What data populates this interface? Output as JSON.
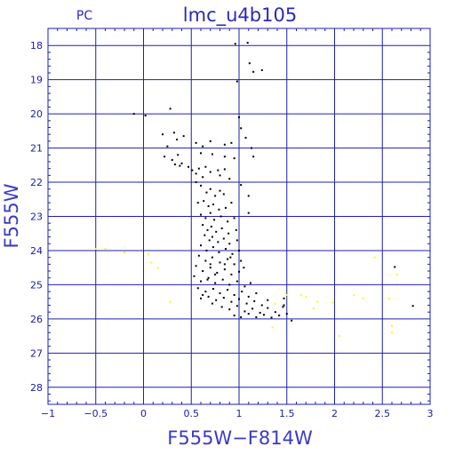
{
  "chart_data": {
    "type": "scatter",
    "title": "lmc_u4b105",
    "panel_label": "PC",
    "xlabel": "F555W−F814W",
    "ylabel": "F555W",
    "xlim": [
      -1,
      3
    ],
    "ylim": [
      28.5,
      17.5
    ],
    "y_inverted": true,
    "grid": true,
    "x_ticks": [
      -1,
      -0.5,
      0,
      0.5,
      1,
      1.5,
      2,
      2.5,
      3
    ],
    "x_tick_labels": [
      "−1",
      "−0.5",
      "0",
      "0.5",
      "1",
      "1.5",
      "2",
      "2.5",
      "3"
    ],
    "y_ticks": [
      18,
      19,
      20,
      21,
      22,
      23,
      24,
      25,
      26,
      27,
      28
    ],
    "y_tick_labels": [
      "18",
      "19",
      "20",
      "21",
      "22",
      "23",
      "24",
      "25",
      "26",
      "27",
      "28"
    ],
    "colors": {
      "axis": "#1f1fb0",
      "grid": "#1f1fb0",
      "main": "#000000",
      "secondary": "#ffff00"
    },
    "series": [
      {
        "color": "#000000",
        "points": [
          [
            0.96,
            17.95
          ],
          [
            1.09,
            17.92
          ],
          [
            0.98,
            19.05
          ],
          [
            1.11,
            18.52
          ],
          [
            1.15,
            18.77
          ],
          [
            1.24,
            18.72
          ],
          [
            -0.1,
            20.0
          ],
          [
            0.02,
            20.05
          ],
          [
            0.28,
            19.85
          ],
          [
            1.0,
            20.1
          ],
          [
            1.02,
            20.42
          ],
          [
            0.2,
            20.6
          ],
          [
            0.32,
            20.55
          ],
          [
            0.25,
            20.95
          ],
          [
            0.35,
            20.75
          ],
          [
            0.42,
            20.65
          ],
          [
            0.55,
            20.85
          ],
          [
            0.7,
            20.8
          ],
          [
            0.62,
            20.95
          ],
          [
            0.85,
            20.9
          ],
          [
            0.92,
            20.85
          ],
          [
            1.07,
            20.7
          ],
          [
            1.13,
            21.0
          ],
          [
            0.22,
            21.25
          ],
          [
            0.3,
            21.35
          ],
          [
            0.36,
            21.2
          ],
          [
            0.6,
            21.15
          ],
          [
            0.72,
            21.18
          ],
          [
            0.85,
            21.25
          ],
          [
            0.95,
            21.3
          ],
          [
            1.15,
            21.25
          ],
          [
            0.4,
            21.45
          ],
          [
            0.47,
            21.55
          ],
          [
            0.51,
            21.65
          ],
          [
            0.58,
            21.6
          ],
          [
            0.65,
            21.55
          ],
          [
            0.7,
            21.7
          ],
          [
            0.78,
            21.65
          ],
          [
            0.85,
            21.62
          ],
          [
            0.33,
            21.48
          ],
          [
            0.38,
            21.52
          ],
          [
            0.55,
            21.75
          ],
          [
            0.62,
            21.85
          ],
          [
            0.8,
            21.8
          ],
          [
            0.9,
            21.9
          ],
          [
            1.02,
            22.08
          ],
          [
            1.1,
            22.4
          ],
          [
            1.1,
            22.9
          ],
          [
            0.55,
            22.0
          ],
          [
            0.6,
            22.1
          ],
          [
            0.66,
            22.3
          ],
          [
            0.7,
            22.2
          ],
          [
            0.75,
            22.4
          ],
          [
            0.8,
            22.25
          ],
          [
            0.84,
            22.35
          ],
          [
            0.57,
            22.6
          ],
          [
            0.63,
            22.55
          ],
          [
            0.68,
            22.7
          ],
          [
            0.73,
            22.65
          ],
          [
            0.79,
            22.8
          ],
          [
            0.86,
            22.75
          ],
          [
            0.92,
            22.6
          ],
          [
            0.6,
            22.95
          ],
          [
            0.65,
            23.05
          ],
          [
            0.7,
            22.9
          ],
          [
            0.74,
            23.1
          ],
          [
            0.81,
            23.0
          ],
          [
            0.88,
            23.15
          ],
          [
            0.95,
            23.05
          ],
          [
            0.62,
            23.25
          ],
          [
            0.67,
            23.4
          ],
          [
            0.71,
            23.3
          ],
          [
            0.76,
            23.45
          ],
          [
            0.82,
            23.35
          ],
          [
            0.89,
            23.5
          ],
          [
            0.97,
            23.4
          ],
          [
            0.64,
            23.55
          ],
          [
            0.69,
            23.7
          ],
          [
            0.72,
            23.6
          ],
          [
            0.78,
            23.75
          ],
          [
            0.84,
            23.65
          ],
          [
            0.9,
            23.8
          ],
          [
            0.98,
            23.7
          ],
          [
            0.6,
            23.85
          ],
          [
            0.66,
            24.0
          ],
          [
            0.73,
            23.9
          ],
          [
            0.79,
            24.05
          ],
          [
            0.86,
            23.95
          ],
          [
            0.93,
            24.1
          ],
          [
            1.0,
            24.0
          ],
          [
            0.58,
            24.15
          ],
          [
            0.65,
            24.3
          ],
          [
            0.72,
            24.2
          ],
          [
            0.8,
            24.35
          ],
          [
            0.88,
            24.25
          ],
          [
            0.95,
            24.4
          ],
          [
            1.02,
            24.3
          ],
          [
            0.55,
            24.45
          ],
          [
            0.62,
            24.6
          ],
          [
            0.7,
            24.5
          ],
          [
            0.77,
            24.65
          ],
          [
            0.85,
            24.55
          ],
          [
            0.92,
            24.7
          ],
          [
            1.0,
            24.62
          ],
          [
            1.05,
            24.5
          ],
          [
            0.53,
            24.75
          ],
          [
            0.6,
            24.9
          ],
          [
            0.68,
            24.8
          ],
          [
            0.75,
            24.95
          ],
          [
            0.83,
            24.85
          ],
          [
            0.9,
            25.0
          ],
          [
            0.98,
            24.9
          ],
          [
            1.06,
            25.05
          ],
          [
            1.12,
            24.95
          ],
          [
            0.57,
            25.1
          ],
          [
            0.65,
            25.2
          ],
          [
            0.73,
            25.12
          ],
          [
            0.8,
            25.25
          ],
          [
            0.88,
            25.15
          ],
          [
            0.95,
            25.3
          ],
          [
            1.03,
            25.2
          ],
          [
            1.1,
            25.35
          ],
          [
            1.18,
            25.25
          ],
          [
            0.6,
            25.4
          ],
          [
            0.68,
            25.35
          ],
          [
            0.76,
            25.45
          ],
          [
            0.84,
            25.38
          ],
          [
            0.92,
            25.5
          ],
          [
            1.0,
            25.42
          ],
          [
            1.08,
            25.55
          ],
          [
            1.16,
            25.48
          ],
          [
            1.24,
            25.6
          ],
          [
            1.3,
            25.45
          ],
          [
            0.82,
            25.65
          ],
          [
            0.9,
            25.72
          ],
          [
            0.98,
            25.62
          ],
          [
            1.06,
            25.78
          ],
          [
            1.14,
            25.7
          ],
          [
            1.22,
            25.82
          ],
          [
            1.3,
            25.68
          ],
          [
            1.38,
            25.8
          ],
          [
            1.46,
            25.65
          ],
          [
            0.95,
            25.9
          ],
          [
            1.02,
            25.95
          ],
          [
            1.1,
            25.85
          ],
          [
            1.18,
            25.95
          ],
          [
            1.26,
            25.88
          ],
          [
            1.34,
            25.96
          ],
          [
            1.42,
            25.9
          ],
          [
            1.5,
            25.85
          ],
          [
            1.55,
            26.05
          ],
          [
            1.47,
            25.4
          ],
          [
            1.47,
            25.6
          ],
          [
            0.7,
            24.4
          ],
          [
            0.75,
            24.7
          ],
          [
            0.85,
            24.4
          ],
          [
            0.91,
            24.2
          ],
          [
            0.67,
            24.85
          ],
          [
            0.62,
            25.3
          ],
          [
            0.72,
            25.55
          ],
          [
            2.63,
            24.48
          ],
          [
            2.82,
            25.62
          ]
        ]
      },
      {
        "color": "#ffff00",
        "points": [
          [
            -0.5,
            23.95
          ],
          [
            -0.4,
            23.95
          ],
          [
            -0.2,
            24.05
          ],
          [
            0.05,
            24.1
          ],
          [
            0.08,
            24.35
          ],
          [
            0.15,
            24.5
          ],
          [
            0.28,
            25.5
          ],
          [
            1.35,
            26.25
          ],
          [
            1.38,
            25.55
          ],
          [
            1.5,
            25.3
          ],
          [
            1.65,
            25.3
          ],
          [
            1.7,
            25.35
          ],
          [
            1.82,
            25.5
          ],
          [
            1.78,
            25.7
          ],
          [
            1.98,
            25.52
          ],
          [
            2.05,
            26.5
          ],
          [
            2.2,
            25.3
          ],
          [
            2.3,
            25.4
          ],
          [
            2.42,
            24.2
          ],
          [
            2.57,
            25.4
          ],
          [
            2.6,
            26.2
          ],
          [
            2.6,
            26.4
          ],
          [
            2.65,
            24.7
          ]
        ]
      }
    ]
  }
}
